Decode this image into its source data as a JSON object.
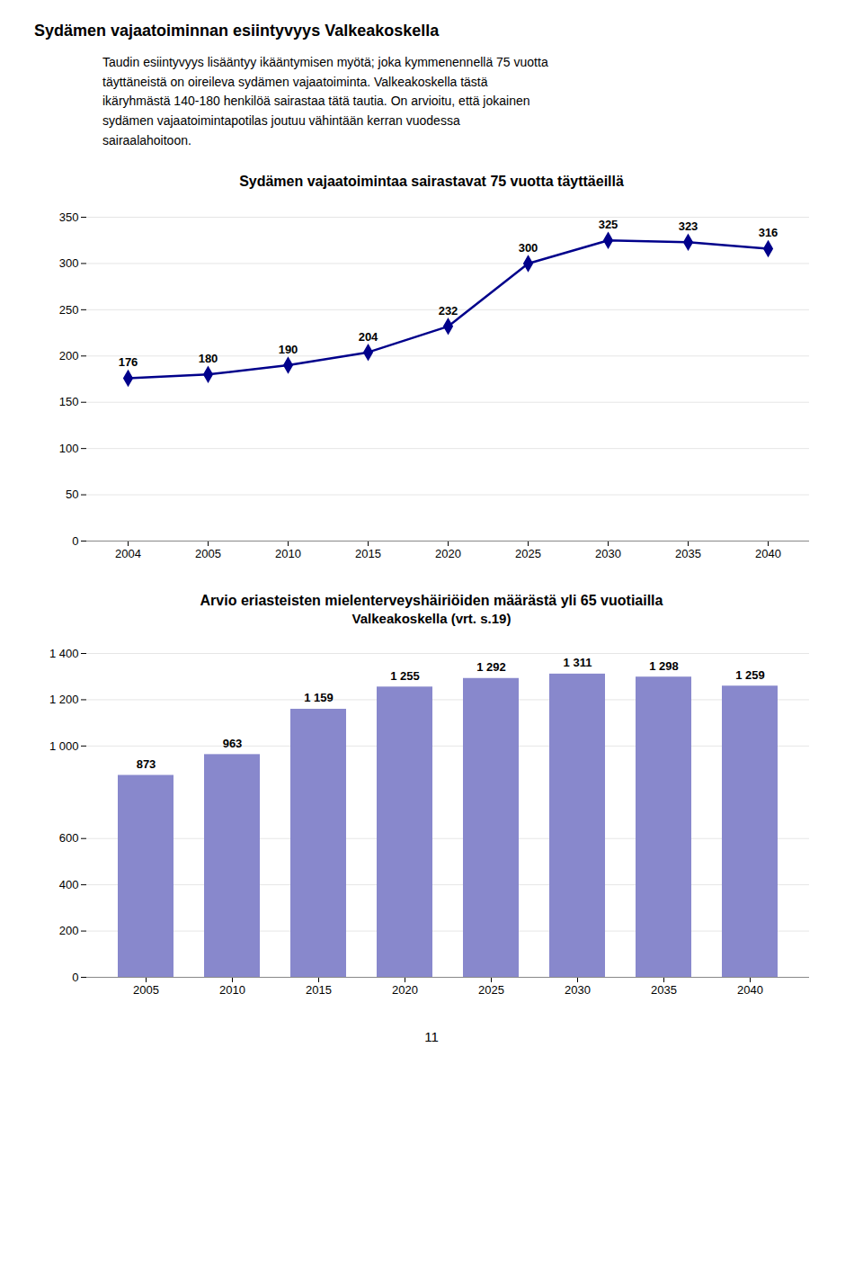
{
  "title": "Sydämen vajaatoiminnan esiintyvyys Valkeakoskella",
  "text": [
    "Taudin esiintyvyys lisääntyy ikääntymisen myötä; joka kymmenennellä 75 vuotta",
    "täyttäneistä on oireileva sydämen vajaatoiminta. Valkeakoskella tästä",
    "ikäryhmästä 140-180 henkilöä sairastaa tätä tautia. On arvioitu, että jokainen",
    "sydämen vajaatoimintapotilas joutuu vähintään kerran vuodessa",
    "sairaalahoitoon."
  ],
  "annotations": [
    "11"
  ],
  "chart_data": [
    {
      "type": "line",
      "title": "Sydämen vajaatoimintaa sairastavat 75 vuotta täyttäeillä",
      "categories": [
        "2004",
        "2005",
        "2010",
        "2015",
        "2020",
        "2025",
        "2030",
        "2035",
        "2040"
      ],
      "values": [
        176,
        180,
        190,
        204,
        232,
        300,
        325,
        323,
        316
      ],
      "color": "#00008B",
      "marker": "diamond",
      "ylim": [
        0,
        350
      ],
      "yticks": [
        0,
        50,
        100,
        150,
        200,
        250,
        300,
        350
      ],
      "grid": true,
      "data_labels": true
    },
    {
      "type": "bar",
      "title": "Arvio eriasteisten mielenterveyshäiriöiden määrästä yli 65 vuotiailla",
      "subtitle": "Valkeakoskella (vrt. s.19)",
      "categories": [
        "2005",
        "2010",
        "2015",
        "2020",
        "2025",
        "2030",
        "2035",
        "2040"
      ],
      "values": [
        873,
        963,
        1159,
        1255,
        1292,
        1311,
        1298,
        1259
      ],
      "value_labels": [
        "873",
        "963",
        "1 159",
        "1 255",
        "1 292",
        "1 311",
        "1 298",
        "1 259"
      ],
      "color": "#8888CC",
      "ylim": [
        0,
        1400
      ],
      "yticks": [
        0,
        200,
        400,
        600,
        {
          "value": 1000,
          "label": "1 000"
        },
        {
          "value": 1200,
          "label": "1 200"
        },
        {
          "value": 1400,
          "label": "1 400"
        }
      ],
      "grid": true,
      "data_labels": true
    }
  ]
}
